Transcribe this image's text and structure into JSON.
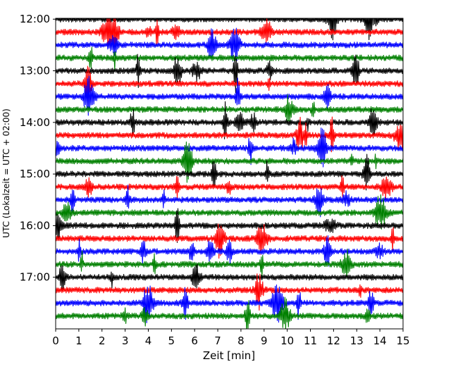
{
  "chart_data": {
    "type": "line",
    "title": "",
    "xlabel": "Zeit  [min]",
    "ylabel": "UTC (Lokalzeit = UTC + 02:00)",
    "xlim": [
      0,
      15
    ],
    "ylim_minutes_utc": [
      719,
      1080
    ],
    "x_ticks": [
      0,
      1,
      2,
      3,
      4,
      5,
      6,
      7,
      8,
      9,
      10,
      11,
      12,
      13,
      14,
      15
    ],
    "x_tick_labels": [
      "0",
      "1",
      "2",
      "3",
      "4",
      "5",
      "6",
      "7",
      "8",
      "9",
      "10",
      "11",
      "12",
      "13",
      "14",
      "15"
    ],
    "y_tick_labels": [
      "12:00",
      "13:00",
      "14:00",
      "15:00",
      "16:00",
      "17:00"
    ],
    "y_tick_minutes_utc": [
      720,
      780,
      840,
      900,
      960,
      1020
    ],
    "trace_interval_min": 15,
    "first_trace_start_utc": "12:00",
    "last_trace_start_utc": "17:45",
    "trace_colors": [
      "#000000",
      "#ff0000",
      "#0000ff",
      "#008000"
    ],
    "grid": false,
    "legend": "none"
  }
}
